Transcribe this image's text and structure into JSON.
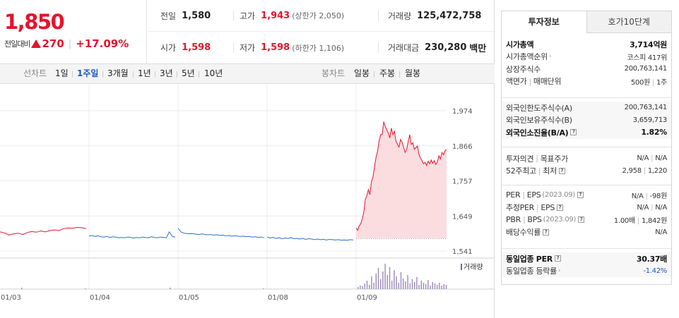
{
  "price": {
    "current": "1,850",
    "change_label": "전일대비",
    "change_amount": "270",
    "change_percent": "+17.09%"
  },
  "quote": {
    "prev_close_label": "전일",
    "prev_close": "1,580",
    "high_label": "고가",
    "high": "1,943",
    "upper_limit": "(상한가 2,050)",
    "volume_label": "거래량",
    "volume": "125,472,758",
    "open_label": "시가",
    "open": "1,598",
    "low_label": "저가",
    "low": "1,598",
    "lower_limit": "(하한가 1,106)",
    "value_label": "거래대금",
    "value": "230,280",
    "value_unit": "백만"
  },
  "toolbar": {
    "line_chart_label": "선차트",
    "periods": [
      "1일",
      "1주일",
      "3개월",
      "1년",
      "3년",
      "5년",
      "10년"
    ],
    "active_period": "1주일",
    "candle_chart_label": "봉차트",
    "candles": [
      "일봉",
      "주봉",
      "월봉"
    ]
  },
  "chart_data": {
    "type": "line",
    "y_ticks": [
      "1,974",
      "1,866",
      "1,757",
      "1,649",
      "1,541"
    ],
    "ylim": [
      1541,
      1974
    ],
    "x_labels": [
      "01/03",
      "01/04",
      "01/05",
      "01/08",
      "01/09"
    ],
    "volume_legend": "거래량",
    "prev_close": 1580,
    "sessions": [
      {
        "date": "01/03",
        "color": "#e4142d",
        "values": [
          1600,
          1597,
          1590,
          1594,
          1596,
          1592,
          1598,
          1601,
          1599,
          1603,
          1600,
          1604,
          1606,
          1604,
          1610,
          1612,
          1611,
          1614,
          1613,
          1610
        ]
      },
      {
        "date": "01/04",
        "color": "#2c6fcc",
        "values": [
          1587,
          1589,
          1586,
          1588,
          1585,
          1584,
          1586,
          1583,
          1585,
          1584,
          1582,
          1583,
          1582,
          1584,
          1583,
          1581,
          1583,
          1582,
          1584,
          1583,
          1582,
          1585,
          1583,
          1582,
          1584,
          1583,
          1582,
          1600,
          1586,
          1584
        ]
      },
      {
        "date": "01/05",
        "color": "#2c6fcc",
        "values": [
          1611,
          1600,
          1596,
          1595,
          1594,
          1595,
          1593,
          1592,
          1594,
          1592,
          1591,
          1592,
          1590,
          1591,
          1589,
          1590,
          1588,
          1589,
          1587,
          1588,
          1587,
          1586,
          1587,
          1585,
          1586,
          1584,
          1585,
          1583,
          1584,
          1582
        ]
      },
      {
        "date": "01/08",
        "color": "#2c6fcc",
        "values": [
          1584,
          1581,
          1583,
          1580,
          1582,
          1579,
          1581,
          1580,
          1582,
          1579,
          1580,
          1578,
          1580,
          1577,
          1579,
          1578,
          1576,
          1578,
          1576,
          1577,
          1575,
          1577,
          1576,
          1575,
          1576,
          1574,
          1575,
          1574,
          1576,
          1575
        ]
      },
      {
        "date": "01/09",
        "color": "#e4142d",
        "fill": "#fbdde0",
        "values": [
          1612,
          1605,
          1618,
          1625,
          1640,
          1660,
          1700,
          1712,
          1730,
          1715,
          1755,
          1770,
          1800,
          1830,
          1850,
          1880,
          1900,
          1900,
          1940,
          1925,
          1915,
          1905,
          1890,
          1920,
          1900,
          1910,
          1880,
          1870,
          1862,
          1885,
          1876,
          1860,
          1845,
          1855,
          1880,
          1900,
          1870,
          1875,
          1855,
          1860,
          1865,
          1840,
          1828,
          1820,
          1810,
          1815,
          1805,
          1818,
          1810,
          1822,
          1812,
          1820,
          1808,
          1816,
          1835,
          1825,
          1845,
          1838,
          1850,
          1855
        ]
      }
    ]
  },
  "panel": {
    "tab_active": "투자정보",
    "tab_other": "호가10단계",
    "g1": [
      {
        "label": "시가총액",
        "value": "3,714억원",
        "bold": true
      },
      {
        "label": "시가총액순위",
        "value": "코스피 417위",
        "arrow": true
      },
      {
        "label": "상장주식수",
        "value": "200,763,141"
      },
      {
        "label": "액면가",
        "label2": "매매단위",
        "value": "500원",
        "value2": "1주"
      }
    ],
    "g2": [
      {
        "label": "외국인한도주식수(A)",
        "value": "200,763,141"
      },
      {
        "label": "외국인보유주식수(B)",
        "value": "3,659,713"
      },
      {
        "label": "외국인소진율(B/A)",
        "value": "1.82%",
        "bold": true,
        "q": true
      }
    ],
    "g3": [
      {
        "label": "투자의견",
        "label2": "목표주가",
        "value": "N/A",
        "value2": "N/A"
      },
      {
        "label": "52주최고",
        "label2": "최저",
        "value": "2,958",
        "value2": "1,220",
        "q": true
      }
    ],
    "g4": [
      {
        "label": "PER",
        "label2": "EPS",
        "sub": "(2023.09)",
        "value": "N/A",
        "value2": "-98원",
        "q": true
      },
      {
        "label": "추정PER",
        "label2": "EPS",
        "value": "N/A",
        "value2": "N/A",
        "q": true
      },
      {
        "label": "PBR",
        "label2": "BPS",
        "sub": "(2023.09)",
        "value": "1.00배",
        "value2": "1,842원",
        "q": true
      },
      {
        "label": "배당수익률",
        "value": "N/A",
        "q": true
      }
    ],
    "g5": [
      {
        "label": "동일업종 PER",
        "value": "30.37배",
        "bold": true,
        "q": true
      },
      {
        "label": "동일업종 등락률",
        "value": "-1.42%",
        "neg": true,
        "arrow": true
      }
    ]
  }
}
